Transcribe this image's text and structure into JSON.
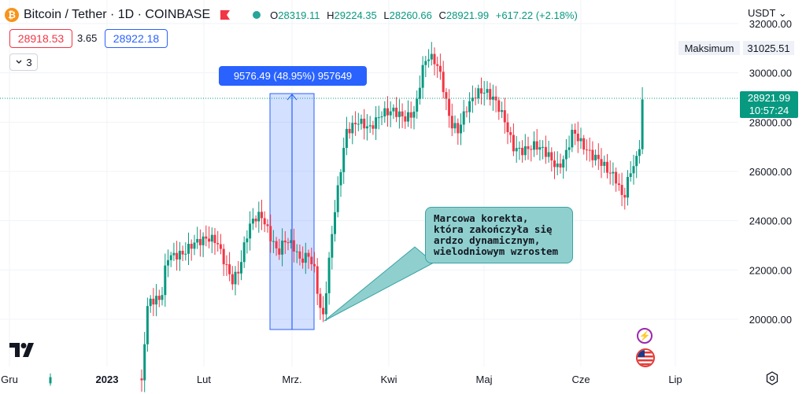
{
  "header": {
    "coin_letter": "₿",
    "symbol_title": "Bitcoin / Tether · 1D · COINBASE",
    "open_label": "O",
    "open": "28319.11",
    "high_label": "H",
    "high": "29224.35",
    "low_label": "L",
    "low": "28260.66",
    "close_label": "C",
    "close": "28921.99",
    "change": "+617.22 (+2.18%)"
  },
  "trade": {
    "bid": "28918.53",
    "spread": "3.65",
    "ask": "28922.18"
  },
  "indicators": {
    "count": "3"
  },
  "currency": "USDT",
  "currency_icon": "chevron-down-icon",
  "max_label": "Maksimum",
  "max_value": "31025.51",
  "current_price": "28921.99",
  "countdown": "10:57:24",
  "measure": "9576.49 (48.95%) 957649",
  "annotation_lines": [
    "Marcowa korekta,",
    "która zakończyła się",
    "ardzo dynamicznym,",
    "wielodniowym wzrostem"
  ],
  "colors": {
    "up": "#089981",
    "down": "#f23645",
    "accent": "#2962ff",
    "callout": "#8fd0cf"
  },
  "chart_data": {
    "type": "candlestick",
    "y_ticks": [
      "32000.00",
      "30000.00",
      "28000.00",
      "26000.00",
      "24000.00",
      "22000.00",
      "20000.00"
    ],
    "x_ticks": [
      "Gru",
      "2023",
      "Lut",
      "Mrz.",
      "Kwi",
      "Maj",
      "Cze",
      "Lip"
    ],
    "ylim": [
      17800,
      32300
    ],
    "anchors": [
      [
        64,
        17500
      ],
      [
        180,
        17600
      ],
      [
        182,
        18500
      ],
      [
        186,
        20600
      ],
      [
        190,
        21000
      ],
      [
        205,
        21100
      ],
      [
        212,
        22800
      ],
      [
        232,
        22900
      ],
      [
        245,
        23300
      ],
      [
        262,
        23500
      ],
      [
        275,
        23400
      ],
      [
        285,
        22500
      ],
      [
        295,
        21700
      ],
      [
        305,
        22200
      ],
      [
        312,
        23400
      ],
      [
        320,
        24100
      ],
      [
        332,
        24300
      ],
      [
        343,
        23400
      ],
      [
        353,
        22700
      ],
      [
        363,
        23200
      ],
      [
        373,
        22900
      ],
      [
        381,
        22300
      ],
      [
        392,
        22500
      ],
      [
        400,
        21800
      ],
      [
        406,
        20400
      ],
      [
        410,
        19800
      ],
      [
        416,
        21500
      ],
      [
        423,
        23700
      ],
      [
        432,
        25700
      ],
      [
        440,
        27400
      ],
      [
        455,
        27800
      ],
      [
        470,
        27500
      ],
      [
        485,
        28100
      ],
      [
        500,
        28200
      ],
      [
        515,
        27900
      ],
      [
        525,
        28100
      ],
      [
        530,
        28600
      ],
      [
        536,
        29900
      ],
      [
        545,
        30500
      ],
      [
        556,
        30100
      ],
      [
        565,
        29000
      ],
      [
        572,
        27800
      ],
      [
        582,
        27500
      ],
      [
        592,
        28400
      ],
      [
        605,
        29100
      ],
      [
        617,
        29200
      ],
      [
        628,
        28900
      ],
      [
        640,
        28200
      ],
      [
        652,
        27000
      ],
      [
        665,
        26900
      ],
      [
        680,
        27200
      ],
      [
        695,
        26900
      ],
      [
        708,
        26300
      ],
      [
        718,
        26800
      ],
      [
        728,
        27900
      ],
      [
        740,
        27300
      ],
      [
        752,
        26900
      ],
      [
        762,
        26700
      ],
      [
        772,
        26300
      ],
      [
        782,
        26000
      ],
      [
        792,
        25100
      ],
      [
        800,
        26200
      ],
      [
        810,
        26800
      ],
      [
        816,
        28100
      ],
      [
        819,
        28921
      ]
    ]
  }
}
